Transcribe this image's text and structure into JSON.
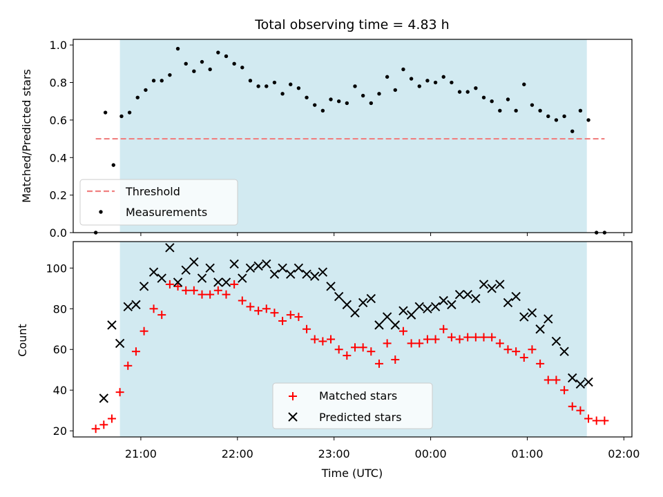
{
  "title": "Total observing time = 4.83 h",
  "colors": {
    "shade": "#add8e6",
    "threshold": "#f08080",
    "measurements": "#000000",
    "matched": "#ff0000",
    "predicted": "#000000"
  },
  "x_ticks": [
    {
      "t": 21.0,
      "label": "21:00"
    },
    {
      "t": 22.0,
      "label": "22:00"
    },
    {
      "t": 23.0,
      "label": "23:00"
    },
    {
      "t": 24.0,
      "label": "00:00"
    },
    {
      "t": 25.0,
      "label": "01:00"
    },
    {
      "t": 26.0,
      "label": "02:00"
    }
  ],
  "chart_data": [
    {
      "type": "scatter",
      "ylabel": "Matched/Predicted stars",
      "xlim": [
        "20:18",
        "02:05"
      ],
      "ylim": [
        0,
        1.03
      ],
      "y_ticks": [
        "0.0",
        "0.2",
        "0.4",
        "0.6",
        "0.8",
        "1.0"
      ],
      "shaded_interval": [
        "20:47",
        "01:37"
      ],
      "threshold": {
        "name": "Threshold",
        "value": 0.5,
        "x_range": [
          "20:32",
          "01:48"
        ],
        "style": "dashed"
      },
      "series": [
        {
          "name": "Measurements",
          "marker": "dot",
          "x": [
            "20:32",
            "20:38",
            "20:43",
            "20:48",
            "20:53",
            "20:58",
            "21:03",
            "21:08",
            "21:13",
            "21:18",
            "21:23",
            "21:28",
            "21:33",
            "21:38",
            "21:43",
            "21:48",
            "21:53",
            "21:58",
            "22:03",
            "22:08",
            "22:13",
            "22:18",
            "22:23",
            "22:28",
            "22:33",
            "22:38",
            "22:43",
            "22:48",
            "22:53",
            "22:58",
            "23:03",
            "23:08",
            "23:13",
            "23:18",
            "23:23",
            "23:28",
            "23:33",
            "23:38",
            "23:43",
            "23:48",
            "23:53",
            "23:58",
            "00:03",
            "00:08",
            "00:13",
            "00:18",
            "00:23",
            "00:28",
            "00:33",
            "00:38",
            "00:43",
            "00:48",
            "00:53",
            "00:58",
            "01:03",
            "01:08",
            "01:13",
            "01:18",
            "01:23",
            "01:28",
            "01:33",
            "01:38",
            "01:43",
            "01:48"
          ],
          "y": [
            0.0,
            0.64,
            0.36,
            0.62,
            0.64,
            0.72,
            0.76,
            0.81,
            0.81,
            0.84,
            0.98,
            0.9,
            0.86,
            0.91,
            0.87,
            0.96,
            0.94,
            0.9,
            0.88,
            0.81,
            0.78,
            0.78,
            0.8,
            0.74,
            0.79,
            0.77,
            0.72,
            0.68,
            0.65,
            0.71,
            0.7,
            0.69,
            0.78,
            0.73,
            0.69,
            0.74,
            0.83,
            0.76,
            0.87,
            0.82,
            0.78,
            0.81,
            0.8,
            0.83,
            0.8,
            0.75,
            0.75,
            0.77,
            0.72,
            0.7,
            0.65,
            0.71,
            0.65,
            0.79,
            0.68,
            0.65,
            0.62,
            0.6,
            0.62,
            0.54,
            0.65,
            0.6,
            0.0,
            0.0
          ]
        }
      ],
      "legend": {
        "position": "lower-left",
        "entries": [
          "Threshold",
          "Measurements"
        ]
      }
    },
    {
      "type": "scatter",
      "ylabel": "Count",
      "xlabel": "Time (UTC)",
      "xlim": [
        "20:18",
        "02:05"
      ],
      "ylim": [
        17,
        113
      ],
      "y_ticks": [
        "20",
        "40",
        "60",
        "80",
        "100"
      ],
      "shaded_interval": [
        "20:47",
        "01:37"
      ],
      "series": [
        {
          "name": "Matched stars",
          "marker": "plus",
          "x": [
            "20:32",
            "20:37",
            "20:42",
            "20:47",
            "20:52",
            "20:57",
            "21:02",
            "21:08",
            "21:13",
            "21:18",
            "21:23",
            "21:28",
            "21:33",
            "21:38",
            "21:43",
            "21:48",
            "21:53",
            "21:58",
            "22:03",
            "22:08",
            "22:13",
            "22:18",
            "22:23",
            "22:28",
            "22:33",
            "22:38",
            "22:43",
            "22:48",
            "22:53",
            "22:58",
            "23:03",
            "23:08",
            "23:13",
            "23:18",
            "23:23",
            "23:28",
            "23:33",
            "23:38",
            "23:43",
            "23:48",
            "23:53",
            "23:58",
            "00:03",
            "00:08",
            "00:13",
            "00:18",
            "00:23",
            "00:28",
            "00:33",
            "00:38",
            "00:43",
            "00:48",
            "00:53",
            "00:58",
            "01:03",
            "01:08",
            "01:13",
            "01:18",
            "01:23",
            "01:28",
            "01:33",
            "01:38",
            "01:43",
            "01:48"
          ],
          "y": [
            21,
            23,
            26,
            39,
            52,
            59,
            69,
            80,
            77,
            92,
            91,
            89,
            89,
            87,
            87,
            89,
            87,
            92,
            84,
            81,
            79,
            80,
            78,
            74,
            77,
            76,
            70,
            65,
            64,
            65,
            60,
            57,
            61,
            61,
            59,
            53,
            63,
            55,
            69,
            63,
            63,
            65,
            65,
            70,
            66,
            65,
            66,
            66,
            66,
            66,
            63,
            60,
            59,
            56,
            60,
            53,
            45,
            45,
            40,
            32,
            30,
            26,
            25,
            25
          ]
        },
        {
          "name": "Predicted stars",
          "marker": "x",
          "x": [
            "20:37",
            "20:42",
            "20:47",
            "20:52",
            "20:57",
            "21:02",
            "21:08",
            "21:13",
            "21:18",
            "21:23",
            "21:28",
            "21:33",
            "21:38",
            "21:43",
            "21:48",
            "21:53",
            "21:58",
            "22:03",
            "22:08",
            "22:13",
            "22:18",
            "22:23",
            "22:28",
            "22:33",
            "22:38",
            "22:43",
            "22:48",
            "22:53",
            "22:58",
            "23:03",
            "23:08",
            "23:13",
            "23:18",
            "23:23",
            "23:28",
            "23:33",
            "23:38",
            "23:43",
            "23:48",
            "23:53",
            "23:58",
            "00:03",
            "00:08",
            "00:13",
            "00:18",
            "00:23",
            "00:28",
            "00:33",
            "00:38",
            "00:43",
            "00:48",
            "00:53",
            "00:58",
            "01:03",
            "01:08",
            "01:13",
            "01:18",
            "01:23",
            "01:28",
            "01:33",
            "01:38"
          ],
          "y": [
            36,
            72,
            63,
            81,
            82,
            91,
            98,
            95,
            110,
            93,
            99,
            103,
            95,
            100,
            93,
            93,
            102,
            95,
            100,
            101,
            102,
            97,
            100,
            97,
            100,
            97,
            96,
            98,
            91,
            86,
            82,
            78,
            83,
            85,
            72,
            76,
            72,
            79,
            77,
            81,
            80,
            81,
            84,
            82,
            87,
            87,
            85,
            92,
            90,
            92,
            83,
            86,
            76,
            78,
            70,
            75,
            64,
            59,
            46,
            43,
            44
          ]
        }
      ],
      "legend": {
        "position": "lower-center",
        "entries": [
          "Matched stars",
          "Predicted stars"
        ]
      }
    }
  ]
}
